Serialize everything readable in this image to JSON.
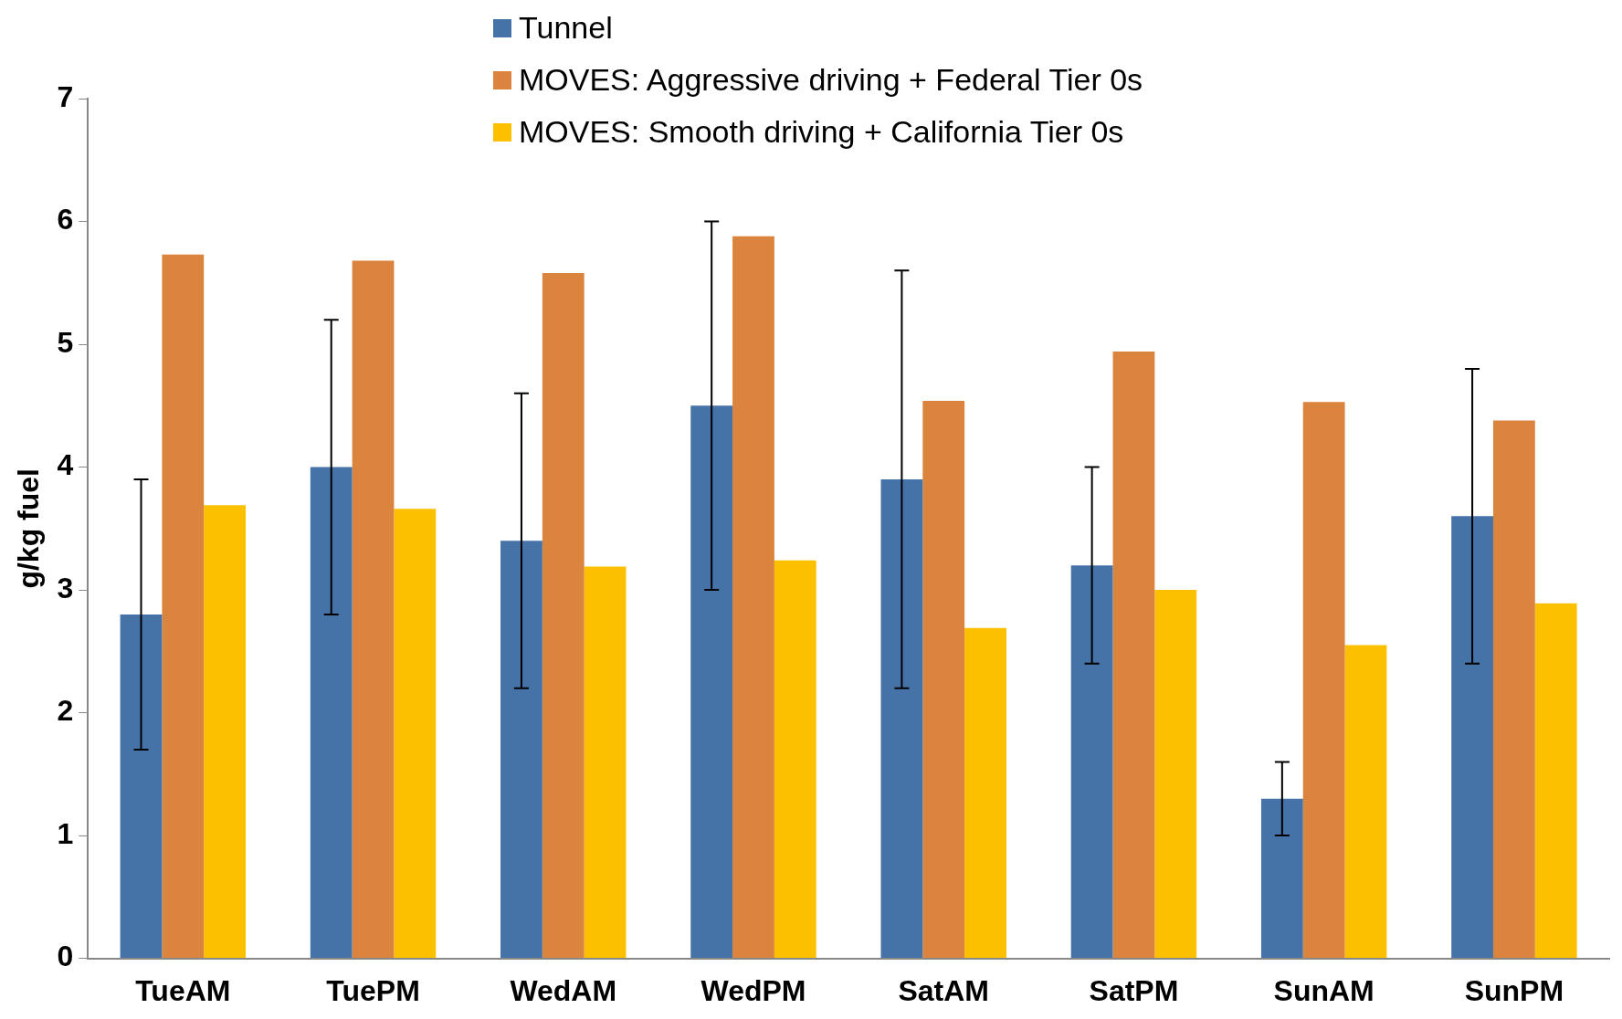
{
  "chart_data": {
    "type": "bar",
    "ylabel": "g/kg fuel",
    "categories": [
      "TueAM",
      "TuePM",
      "WedAM",
      "WedPM",
      "SatAM",
      "SatPM",
      "SunAM",
      "SunPM"
    ],
    "series": [
      {
        "name": "Tunnel",
        "color": "#4673a7",
        "values": [
          2.8,
          4.0,
          3.4,
          4.5,
          3.9,
          3.2,
          1.3,
          3.6
        ],
        "errors": [
          [
            1.7,
            3.9
          ],
          [
            2.8,
            5.2
          ],
          [
            2.2,
            4.6
          ],
          [
            3.0,
            6.0
          ],
          [
            2.2,
            5.6
          ],
          [
            2.4,
            4.0
          ],
          [
            1.0,
            1.6
          ],
          [
            2.4,
            4.8
          ]
        ]
      },
      {
        "name": "MOVES: Aggressive driving + Federal Tier 0s",
        "color": "#db843d",
        "values": [
          5.73,
          5.68,
          5.58,
          5.88,
          4.54,
          4.94,
          4.53,
          4.38
        ]
      },
      {
        "name": "MOVES: Smooth driving + California Tier 0s",
        "color": "#fdc000",
        "values": [
          3.69,
          3.66,
          3.19,
          3.24,
          2.69,
          3.0,
          2.55,
          2.89
        ]
      }
    ],
    "ylim": [
      0,
      7
    ],
    "yticks": [
      0,
      1,
      2,
      3,
      4,
      5,
      6,
      7
    ],
    "grid": false,
    "legend": "top"
  }
}
